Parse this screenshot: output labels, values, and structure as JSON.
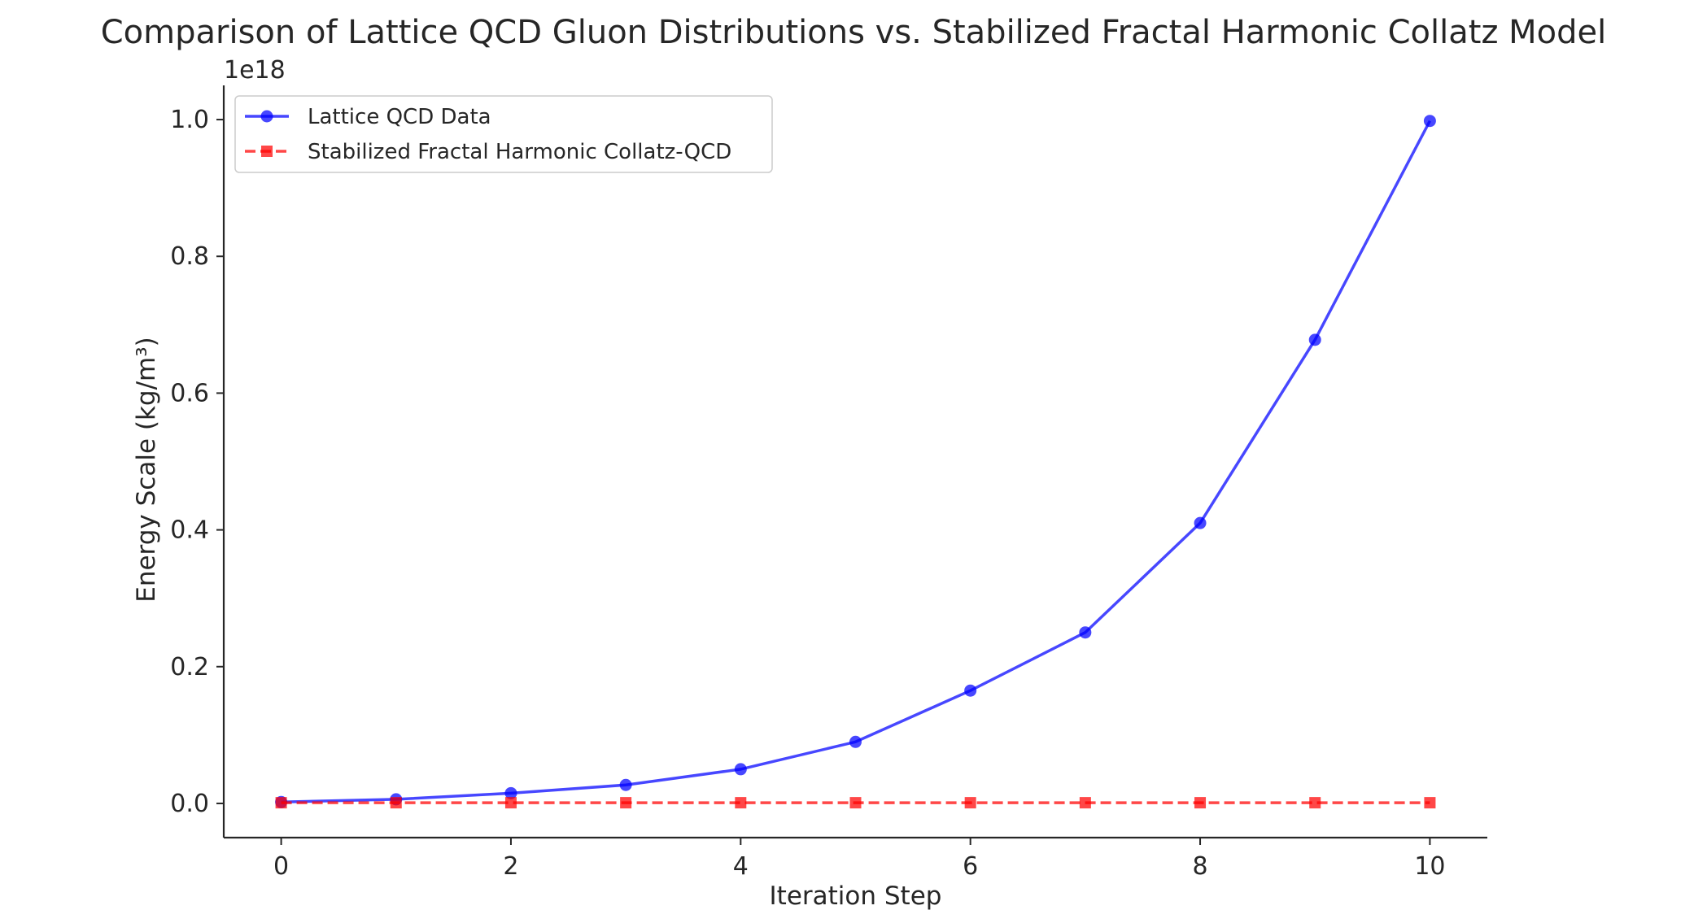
{
  "chart_data": {
    "type": "line",
    "title": "Comparison of Lattice QCD Gluon Distributions vs. Stabilized Fractal Harmonic Collatz Model",
    "xlabel": "Iteration Step",
    "ylabel": "Energy Scale (kg/m³)",
    "y_offset_label": "1e18",
    "xlim": [
      -0.5,
      10.5
    ],
    "ylim": [
      -0.05,
      1.05
    ],
    "x_ticks": [
      0,
      2,
      4,
      6,
      8,
      10
    ],
    "x_tick_labels": [
      "0",
      "2",
      "4",
      "6",
      "8",
      "10"
    ],
    "y_ticks": [
      0.0,
      0.2,
      0.4,
      0.6,
      0.8,
      1.0
    ],
    "y_tick_labels": [
      "0.0",
      "0.2",
      "0.4",
      "0.6",
      "0.8",
      "1.0"
    ],
    "grid": false,
    "legend_position": "top-left",
    "x": [
      0,
      1,
      2,
      3,
      4,
      5,
      6,
      7,
      8,
      9,
      10
    ],
    "series": [
      {
        "name": "Lattice QCD Data",
        "color": "#0000ff",
        "line_style": "solid",
        "marker": "circle",
        "values": [
          0.002,
          0.006,
          0.015,
          0.027,
          0.05,
          0.09,
          0.165,
          0.25,
          0.41,
          0.678,
          0.998
        ]
      },
      {
        "name": "Stabilized Fractal Harmonic Collatz-QCD",
        "color": "#ff0000",
        "line_style": "dashed",
        "marker": "square",
        "values": [
          0.001,
          0.001,
          0.001,
          0.001,
          0.001,
          0.001,
          0.001,
          0.001,
          0.001,
          0.001,
          0.001
        ]
      }
    ]
  }
}
